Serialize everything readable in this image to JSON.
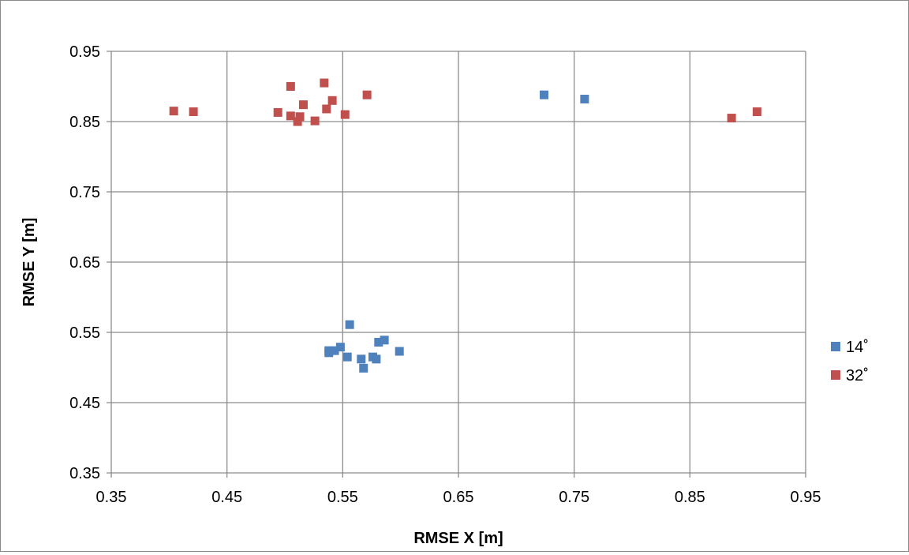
{
  "chart_data": {
    "type": "scatter",
    "xlabel": "RMSE X [m]",
    "ylabel": "RMSE Y [m]",
    "xlim": [
      0.35,
      0.95
    ],
    "ylim": [
      0.35,
      0.95
    ],
    "x_ticks": [
      "0.35",
      "0.45",
      "0.55",
      "0.65",
      "0.75",
      "0.85",
      "0.95"
    ],
    "y_ticks": [
      "0.35",
      "0.45",
      "0.55",
      "0.65",
      "0.75",
      "0.85",
      "0.95"
    ],
    "grid": true,
    "legend_position": "right",
    "series": [
      {
        "name": "14˚",
        "color": "#4f81bd",
        "marker": "square",
        "points": [
          [
            0.724,
            0.888
          ],
          [
            0.759,
            0.882
          ],
          [
            0.556,
            0.561
          ],
          [
            0.586,
            0.539
          ],
          [
            0.581,
            0.536
          ],
          [
            0.548,
            0.529
          ],
          [
            0.538,
            0.524
          ],
          [
            0.543,
            0.524
          ],
          [
            0.538,
            0.521
          ],
          [
            0.599,
            0.523
          ],
          [
            0.554,
            0.515
          ],
          [
            0.576,
            0.515
          ],
          [
            0.579,
            0.512
          ],
          [
            0.566,
            0.512
          ],
          [
            0.568,
            0.499
          ]
        ]
      },
      {
        "name": "32˚",
        "color": "#c0504d",
        "marker": "square",
        "points": [
          [
            0.404,
            0.865
          ],
          [
            0.421,
            0.864
          ],
          [
            0.505,
            0.9
          ],
          [
            0.534,
            0.905
          ],
          [
            0.571,
            0.888
          ],
          [
            0.541,
            0.88
          ],
          [
            0.516,
            0.874
          ],
          [
            0.536,
            0.868
          ],
          [
            0.494,
            0.863
          ],
          [
            0.505,
            0.858
          ],
          [
            0.513,
            0.857
          ],
          [
            0.552,
            0.86
          ],
          [
            0.526,
            0.851
          ],
          [
            0.511,
            0.85
          ],
          [
            0.886,
            0.855
          ],
          [
            0.908,
            0.864
          ]
        ]
      }
    ]
  }
}
